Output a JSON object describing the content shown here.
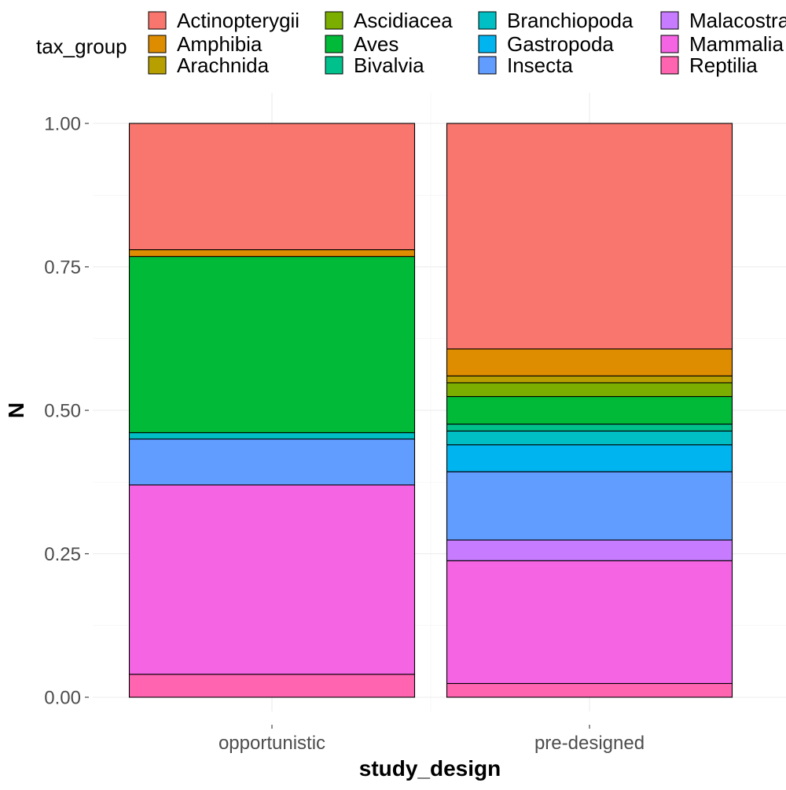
{
  "chart_data": {
    "type": "bar",
    "stacked": true,
    "position": "fill",
    "xlabel": "study_design",
    "ylabel": "N",
    "ylim": [
      0,
      1
    ],
    "yticks": [
      "0.00",
      "0.25",
      "0.50",
      "0.75",
      "1.00"
    ],
    "grid": true,
    "legend": {
      "title": "tax_group",
      "placement": "top",
      "entries": [
        "Actinopterygii",
        "Amphibia",
        "Arachnida",
        "Ascidiacea",
        "Aves",
        "Bivalvia",
        "Branchiopoda",
        "Gastropoda",
        "Insecta",
        "Malacostraca",
        "Mammalia",
        "Reptilia"
      ]
    },
    "colors": {
      "Actinopterygii": "#F8766D",
      "Amphibia": "#DE8C00",
      "Arachnida": "#B79F00",
      "Ascidiacea": "#7CAE00",
      "Aves": "#00BA38",
      "Bivalvia": "#00C08B",
      "Branchiopoda": "#00BFC4",
      "Gastropoda": "#00B4F0",
      "Insecta": "#619CFF",
      "Malacostraca": "#C77CFF",
      "Mammalia": "#F564E3",
      "Reptilia": "#FF64B0"
    },
    "categories": [
      "opportunistic",
      "pre-designed"
    ],
    "series": [
      {
        "name": "Reptilia",
        "values": [
          0.04,
          0.024
        ]
      },
      {
        "name": "Mammalia",
        "values": [
          0.33,
          0.214
        ]
      },
      {
        "name": "Malacostraca",
        "values": [
          0.0,
          0.036
        ]
      },
      {
        "name": "Insecta",
        "values": [
          0.08,
          0.119
        ]
      },
      {
        "name": "Gastropoda",
        "values": [
          0.0,
          0.047
        ]
      },
      {
        "name": "Branchiopoda",
        "values": [
          0.011,
          0.024
        ]
      },
      {
        "name": "Bivalvia",
        "values": [
          0.0,
          0.012
        ]
      },
      {
        "name": "Aves",
        "values": [
          0.307,
          0.048
        ]
      },
      {
        "name": "Ascidiacea",
        "values": [
          0.0,
          0.024
        ]
      },
      {
        "name": "Arachnida",
        "values": [
          0.0,
          0.012
        ]
      },
      {
        "name": "Amphibia",
        "values": [
          0.012,
          0.047
        ]
      },
      {
        "name": "Actinopterygii",
        "values": [
          0.22,
          0.393
        ]
      }
    ]
  }
}
